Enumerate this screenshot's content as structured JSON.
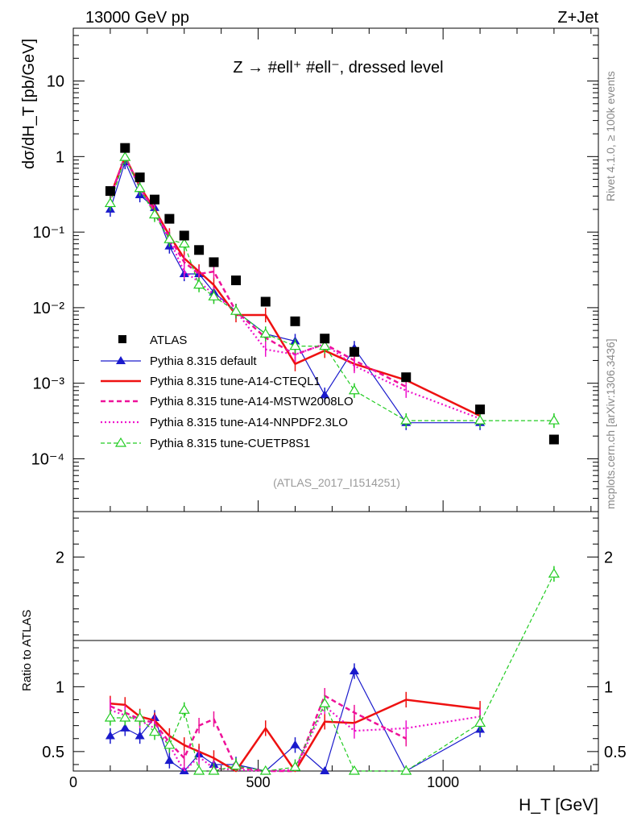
{
  "header": {
    "left": "13000 GeV pp",
    "right": "Z+Jet",
    "process": "Z → #ell⁺ #ell⁻, dressed level",
    "analysis_id": "(ATLAS_2017_I1514251)"
  },
  "side": {
    "rivet": "Rivet 4.1.0, ≥ 100k events",
    "mcplots": "mcplots.cern.ch [arXiv:1306.3436]"
  },
  "colors": {
    "atlas": "#000000",
    "default": "#1a1acc",
    "cteql1": "#ee1111",
    "mstw": "#ee1199",
    "nnpdf": "#ee11cc",
    "cuetp": "#22cc22"
  },
  "chart_data": {
    "type": "line",
    "title": "Z → #ell⁺ #ell⁻, dressed level",
    "xlabel": "H_T [GeV]",
    "ylabel": "dσ/dH_T [pb/GeV]",
    "ratio_ylabel": "Ratio to ATLAS",
    "xlim": [
      0,
      1420
    ],
    "ylim": [
      2e-05,
      50
    ],
    "ratio_ylim": [
      0.35,
      2.35
    ],
    "yscale": "log",
    "x_ticks": [
      0,
      500,
      1000
    ],
    "y_tick_labels": [
      "10",
      "1",
      "10⁻¹",
      "10⁻²",
      "10⁻³",
      "10⁻⁴"
    ],
    "y_tick_values": [
      10,
      1,
      0.1,
      0.01,
      0.001,
      0.0001
    ],
    "ratio_ticks": [
      0.5,
      1,
      2
    ],
    "ratio_tick_labels": [
      "0.5",
      "1",
      "2"
    ],
    "x": [
      100,
      140,
      180,
      220,
      260,
      300,
      340,
      380,
      440,
      520,
      600,
      680,
      760,
      900,
      1100,
      1300
    ],
    "series": [
      {
        "name": "ATLAS",
        "key": "atlas",
        "style": "marker",
        "marker": "square",
        "values": [
          0.35,
          1.3,
          0.53,
          0.27,
          0.15,
          0.09,
          0.058,
          0.04,
          0.023,
          0.012,
          0.0066,
          0.0039,
          0.0026,
          0.0012,
          0.00045,
          0.00018
        ]
      },
      {
        "name": "Pythia 8.315 default",
        "key": "default",
        "style": "solid-thin",
        "marker": "triangle",
        "values": [
          0.2,
          0.85,
          0.31,
          0.21,
          0.065,
          0.028,
          0.028,
          0.016,
          0.009,
          0.0045,
          0.0036,
          0.0007,
          0.0029,
          0.0003,
          0.0003,
          null
        ],
        "ratio": [
          0.62,
          0.68,
          0.62,
          0.76,
          0.43,
          0.31,
          0.48,
          0.4,
          0.4,
          0.3,
          0.55,
          0.18,
          1.12,
          0.25,
          0.67,
          null
        ]
      },
      {
        "name": "Pythia 8.315 tune-A14-CTEQL1",
        "key": "cteql1",
        "style": "solid-thick",
        "marker": "none",
        "values": [
          0.3,
          1.0,
          0.4,
          0.2,
          0.09,
          0.045,
          0.03,
          0.02,
          0.008,
          0.008,
          0.0018,
          0.0027,
          0.0018,
          0.0011,
          0.00037,
          null
        ],
        "ratio": [
          0.87,
          0.86,
          0.77,
          0.74,
          0.62,
          0.55,
          0.5,
          0.45,
          0.34,
          0.68,
          0.27,
          0.73,
          0.72,
          0.9,
          0.83,
          null
        ]
      },
      {
        "name": "Pythia 8.315 tune-A14-MSTW2008LO",
        "key": "mstw",
        "style": "dashed",
        "marker": "none",
        "values": [
          0.29,
          1.0,
          0.39,
          0.19,
          0.085,
          0.04,
          0.028,
          0.03,
          0.009,
          0.004,
          0.0024,
          0.0033,
          0.002,
          0.0009,
          null,
          null
        ],
        "ratio": [
          0.85,
          0.8,
          0.75,
          0.72,
          0.57,
          0.45,
          0.7,
          0.75,
          0.38,
          0.32,
          0.35,
          0.93,
          0.8,
          0.6,
          null,
          null
        ]
      },
      {
        "name": "Pythia 8.315 tune-A14-NNPDF2.3LO",
        "key": "nnpdf",
        "style": "dotted",
        "marker": "none",
        "values": [
          0.28,
          0.98,
          0.38,
          0.18,
          0.08,
          0.03,
          0.022,
          0.015,
          0.009,
          0.0028,
          0.0024,
          0.0033,
          0.0017,
          0.0008,
          0.00034,
          null
        ],
        "ratio": [
          0.82,
          0.78,
          0.74,
          0.68,
          0.55,
          0.33,
          0.46,
          0.37,
          0.36,
          0.24,
          0.36,
          0.85,
          0.66,
          0.68,
          0.77,
          null
        ]
      },
      {
        "name": "Pythia 8.315 tune-CUETP8S1",
        "key": "cuetp",
        "style": "dashed-thin",
        "marker": "open-triangle",
        "values": [
          0.24,
          0.98,
          0.38,
          0.17,
          0.08,
          0.07,
          0.02,
          0.014,
          0.009,
          0.0045,
          0.0031,
          0.0031,
          0.0008,
          0.00032,
          0.00032,
          0.00032
        ],
        "ratio": [
          0.76,
          0.76,
          0.76,
          0.65,
          0.55,
          0.82,
          0.34,
          0.35,
          0.39,
          0.3,
          0.38,
          0.87,
          0.3,
          0.25,
          0.72,
          1.87
        ]
      }
    ]
  }
}
